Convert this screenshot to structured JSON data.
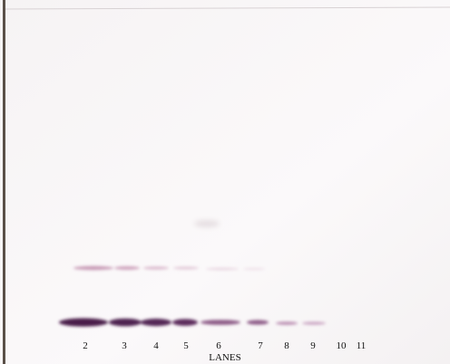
{
  "lanes": {
    "labels": [
      "2",
      "3",
      "4",
      "5",
      "6",
      "7",
      "8",
      "9",
      "10",
      "11"
    ],
    "axis_label": "LANES"
  }
}
